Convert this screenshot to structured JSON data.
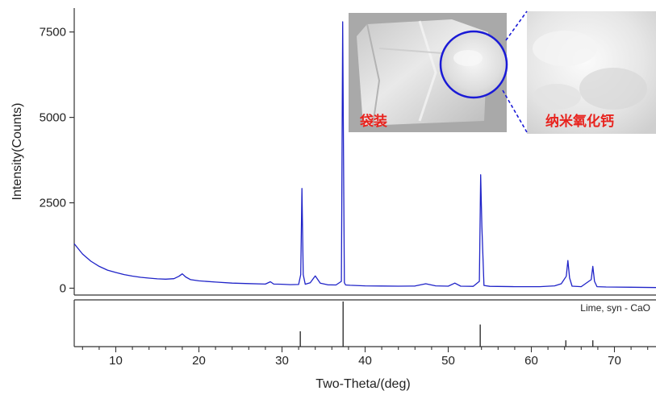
{
  "chart_data": [
    {
      "type": "line",
      "ylabel": "Intensity(Counts)",
      "xlim": [
        5,
        75
      ],
      "ylim": [
        -200,
        8200
      ],
      "yticks": [
        0,
        2500,
        5000,
        7500
      ],
      "line_color": "#1f23c8",
      "series": [
        {
          "x": [
            5,
            6,
            7,
            8,
            9,
            10,
            11,
            12,
            13,
            14,
            15,
            16,
            17,
            17.6,
            18.0,
            18.4,
            19,
            20,
            22,
            24,
            26,
            28,
            28.6,
            29,
            30,
            31,
            32,
            32.25,
            32.4,
            32.55,
            32.8,
            33.4,
            34.0,
            34.6,
            35.5,
            36.5,
            37.15,
            37.3,
            37.4,
            37.5,
            37.65,
            38.2,
            40,
            42,
            44,
            46,
            47.3,
            48.5,
            50,
            50.8,
            51.5,
            53,
            53.75,
            53.9,
            54.05,
            54.3,
            55,
            58,
            61,
            62.8,
            63.6,
            64.2,
            64.4,
            64.6,
            64.9,
            66,
            67.2,
            67.4,
            67.6,
            67.9,
            69,
            72,
            75
          ],
          "y": [
            1300,
            1000,
            790,
            640,
            530,
            460,
            400,
            355,
            320,
            295,
            275,
            265,
            280,
            350,
            420,
            330,
            250,
            215,
            180,
            150,
            135,
            120,
            190,
            120,
            115,
            105,
            110,
            400,
            2920,
            400,
            115,
            160,
            360,
            150,
            100,
            95,
            200,
            7800,
            4000,
            160,
            95,
            85,
            70,
            65,
            60,
            65,
            130,
            70,
            60,
            150,
            60,
            55,
            200,
            3320,
            1800,
            80,
            55,
            45,
            45,
            70,
            130,
            350,
            810,
            300,
            60,
            45,
            250,
            640,
            200,
            45,
            35,
            30,
            20
          ]
        }
      ]
    },
    {
      "type": "bar",
      "xlabel": "Two-Theta/(deg)",
      "xlim": [
        5,
        75
      ],
      "xticks": [
        10,
        20,
        30,
        40,
        50,
        60,
        70
      ],
      "reference_label": "Lime, syn - CaO",
      "peaks_2theta": [
        32.2,
        37.35,
        53.85,
        64.15,
        67.4
      ],
      "relative_intensity": [
        0.34,
        1.0,
        0.49,
        0.14,
        0.14
      ]
    }
  ],
  "inset": {
    "left_caption": "袋装",
    "right_caption": "纳米氧化钙",
    "highlight_color": "#1a1ad6",
    "caption_color": "#e8231e"
  }
}
